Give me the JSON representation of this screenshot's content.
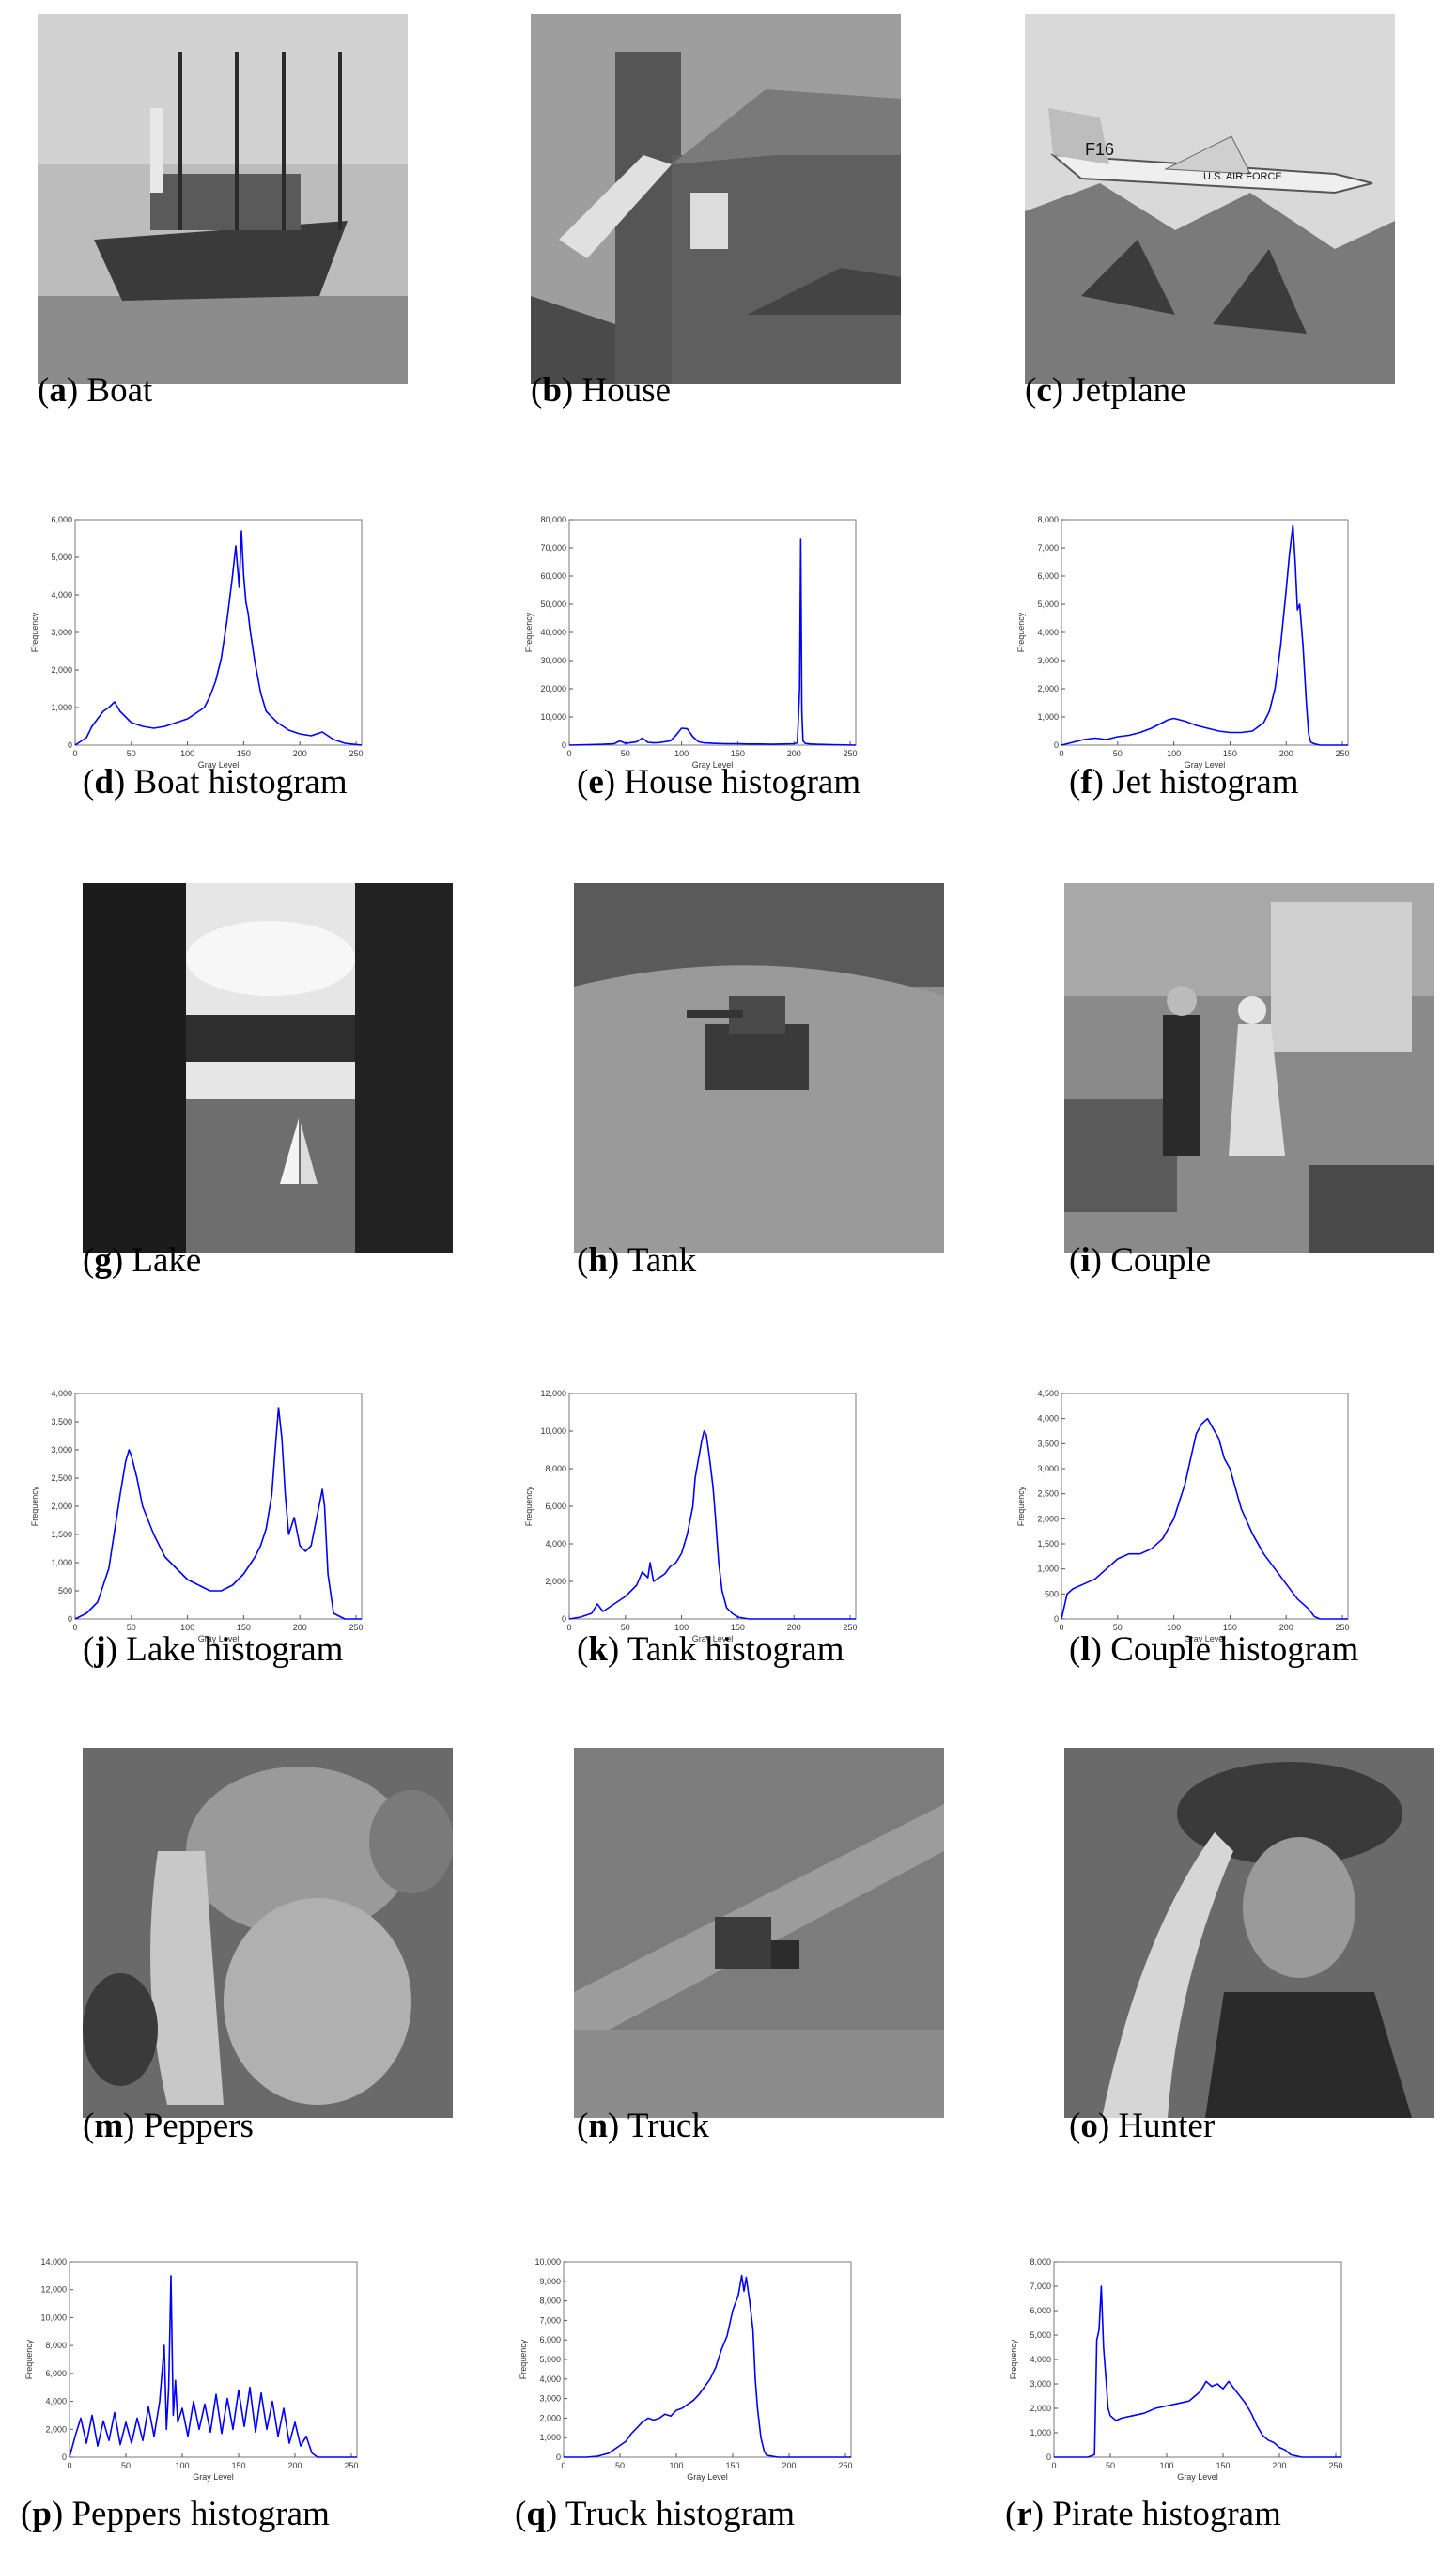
{
  "panels": [
    {
      "letter": "a",
      "caption": "Boat",
      "kind": "image",
      "icon": "boat-photo"
    },
    {
      "letter": "b",
      "caption": "House",
      "kind": "image",
      "icon": "house-photo"
    },
    {
      "letter": "c",
      "caption": "Jetplane",
      "kind": "image",
      "icon": "jetplane-photo",
      "image_text": [
        "F16",
        "U.S. AIR FORCE"
      ]
    },
    {
      "letter": "d",
      "caption": "Boat histogram",
      "kind": "histogram",
      "chart": 0
    },
    {
      "letter": "e",
      "caption": "House histogram",
      "kind": "histogram",
      "chart": 1
    },
    {
      "letter": "f",
      "caption": "Jet histogram",
      "kind": "histogram",
      "chart": 2
    },
    {
      "letter": "g",
      "caption": "Lake",
      "kind": "image",
      "icon": "lake-photo"
    },
    {
      "letter": "h",
      "caption": "Tank",
      "kind": "image",
      "icon": "tank-photo"
    },
    {
      "letter": "i",
      "caption": "Couple",
      "kind": "image",
      "icon": "couple-photo"
    },
    {
      "letter": "j",
      "caption": "Lake histogram",
      "kind": "histogram",
      "chart": 3
    },
    {
      "letter": "k",
      "caption": "Tank histogram",
      "kind": "histogram",
      "chart": 4
    },
    {
      "letter": "l",
      "caption": "Couple histogram",
      "kind": "histogram",
      "chart": 5
    },
    {
      "letter": "m",
      "caption": "Peppers",
      "kind": "image",
      "icon": "peppers-photo"
    },
    {
      "letter": "n",
      "caption": "Truck",
      "kind": "image",
      "icon": "truck-photo"
    },
    {
      "letter": "o",
      "caption": "Hunter",
      "kind": "image",
      "icon": "hunter-photo"
    },
    {
      "letter": "p",
      "caption": "Peppers histogram",
      "kind": "histogram",
      "chart": 6
    },
    {
      "letter": "q",
      "caption": "Truck histogram",
      "kind": "histogram",
      "chart": 7
    },
    {
      "letter": "r",
      "caption": "Pirate histogram",
      "kind": "histogram",
      "chart": 8
    }
  ],
  "chart_style": {
    "line_color": "#0000ff"
  },
  "chart_data": [
    {
      "type": "line",
      "xlabel": "Gray Level",
      "ylabel": "Frequency",
      "xlim": [
        0,
        255
      ],
      "ylim": [
        0,
        6000
      ],
      "xticks": [
        0,
        50,
        100,
        150,
        200,
        250
      ],
      "yticks": [
        0,
        1000,
        2000,
        3000,
        4000,
        5000,
        6000
      ],
      "ytick_labels": [
        "0",
        "1,000",
        "2,000",
        "3,000",
        "4,000",
        "5,000",
        "6,000"
      ],
      "x": [
        0,
        10,
        15,
        20,
        25,
        30,
        35,
        40,
        45,
        50,
        60,
        70,
        80,
        90,
        100,
        110,
        115,
        120,
        125,
        130,
        135,
        140,
        143,
        146,
        148,
        150,
        152,
        154,
        156,
        160,
        165,
        170,
        180,
        190,
        200,
        210,
        220,
        230,
        240,
        255
      ],
      "y": [
        0,
        200,
        500,
        700,
        900,
        1000,
        1150,
        900,
        750,
        600,
        500,
        450,
        500,
        600,
        700,
        900,
        1000,
        1300,
        1700,
        2300,
        3300,
        4500,
        5300,
        4200,
        5700,
        4500,
        3800,
        3500,
        3000,
        2200,
        1400,
        900,
        600,
        400,
        300,
        250,
        350,
        150,
        50,
        0
      ]
    },
    {
      "type": "line",
      "xlabel": "Gray Level",
      "ylabel": "Frequency",
      "xlim": [
        0,
        255
      ],
      "ylim": [
        0,
        80000
      ],
      "xticks": [
        0,
        50,
        100,
        150,
        200,
        250
      ],
      "yticks": [
        0,
        10000,
        20000,
        30000,
        40000,
        50000,
        60000,
        70000,
        80000
      ],
      "ytick_labels": [
        "0",
        "10,000",
        "20,000",
        "30,000",
        "40,000",
        "50,000",
        "60,000",
        "70,000",
        "80,000"
      ],
      "x": [
        0,
        20,
        30,
        40,
        45,
        50,
        55,
        60,
        65,
        70,
        75,
        80,
        90,
        95,
        100,
        105,
        110,
        115,
        120,
        130,
        140,
        150,
        160,
        170,
        180,
        190,
        200,
        203,
        205,
        206,
        207,
        208,
        210,
        215,
        220,
        230,
        240,
        255
      ],
      "y": [
        0,
        200,
        300,
        500,
        1500,
        600,
        900,
        1200,
        2500,
        1000,
        800,
        900,
        1500,
        3500,
        6000,
        5800,
        3000,
        1200,
        800,
        600,
        500,
        500,
        400,
        400,
        300,
        400,
        500,
        800,
        20000,
        73000,
        12000,
        1500,
        600,
        400,
        300,
        200,
        100,
        0
      ]
    },
    {
      "type": "line",
      "xlabel": "Gray Level",
      "ylabel": "Frequency",
      "xlim": [
        0,
        255
      ],
      "ylim": [
        0,
        8000
      ],
      "xticks": [
        0,
        50,
        100,
        150,
        200,
        250
      ],
      "yticks": [
        0,
        1000,
        2000,
        3000,
        4000,
        5000,
        6000,
        7000,
        8000
      ],
      "ytick_labels": [
        "0",
        "1,000",
        "2,000",
        "3,000",
        "4,000",
        "5,000",
        "6,000",
        "7,000",
        "8,000"
      ],
      "x": [
        0,
        10,
        20,
        30,
        40,
        50,
        60,
        70,
        80,
        90,
        95,
        100,
        105,
        110,
        120,
        130,
        140,
        150,
        160,
        170,
        180,
        185,
        190,
        195,
        200,
        203,
        206,
        208,
        210,
        212,
        215,
        218,
        220,
        222,
        225,
        230,
        240,
        255
      ],
      "y": [
        0,
        100,
        200,
        250,
        200,
        300,
        350,
        450,
        600,
        800,
        900,
        950,
        900,
        850,
        700,
        600,
        500,
        450,
        450,
        500,
        800,
        1200,
        2000,
        3500,
        5500,
        6800,
        7800,
        6500,
        4800,
        5000,
        3500,
        1500,
        400,
        100,
        50,
        0,
        0,
        0
      ]
    },
    {
      "type": "line",
      "xlabel": "Gray Level",
      "ylabel": "Frequency",
      "xlim": [
        0,
        255
      ],
      "ylim": [
        0,
        4000
      ],
      "xticks": [
        0,
        50,
        100,
        150,
        200,
        250
      ],
      "yticks": [
        0,
        500,
        1000,
        1500,
        2000,
        2500,
        3000,
        3500,
        4000
      ],
      "ytick_labels": [
        "0",
        "500",
        "1,000",
        "1,500",
        "2,000",
        "2,500",
        "3,000",
        "3,500",
        "4,000"
      ],
      "x": [
        0,
        10,
        20,
        30,
        40,
        45,
        48,
        50,
        55,
        60,
        70,
        80,
        90,
        100,
        110,
        120,
        130,
        140,
        150,
        160,
        165,
        170,
        175,
        178,
        181,
        184,
        187,
        190,
        195,
        200,
        205,
        210,
        215,
        220,
        222,
        225,
        230,
        240,
        255
      ],
      "y": [
        0,
        100,
        300,
        900,
        2200,
        2800,
        3000,
        2900,
        2500,
        2000,
        1500,
        1100,
        900,
        700,
        600,
        500,
        500,
        600,
        800,
        1100,
        1300,
        1600,
        2200,
        3000,
        3750,
        3200,
        2200,
        1500,
        1800,
        1300,
        1200,
        1300,
        1800,
        2300,
        2000,
        800,
        100,
        0,
        0
      ]
    },
    {
      "type": "line",
      "xlabel": "Gray Level",
      "ylabel": "Frequency",
      "xlim": [
        0,
        255
      ],
      "ylim": [
        0,
        12000
      ],
      "xticks": [
        0,
        50,
        100,
        150,
        200,
        250
      ],
      "yticks": [
        0,
        2000,
        4000,
        6000,
        8000,
        10000,
        12000
      ],
      "ytick_labels": [
        "0",
        "2,000",
        "4,000",
        "6,000",
        "8,000",
        "10,000",
        "12,000"
      ],
      "x": [
        0,
        10,
        20,
        25,
        30,
        35,
        40,
        50,
        60,
        65,
        70,
        72,
        75,
        80,
        85,
        90,
        95,
        100,
        105,
        110,
        112,
        115,
        118,
        120,
        122,
        125,
        128,
        130,
        133,
        136,
        140,
        145,
        150,
        160,
        180,
        200,
        255
      ],
      "y": [
        0,
        100,
        300,
        800,
        400,
        600,
        800,
        1200,
        1800,
        2500,
        2200,
        3000,
        2000,
        2200,
        2400,
        2800,
        3000,
        3500,
        4500,
        6000,
        7500,
        8500,
        9500,
        10000,
        9800,
        8500,
        7000,
        5500,
        3000,
        1500,
        600,
        300,
        100,
        0,
        0,
        0,
        0
      ]
    },
    {
      "type": "line",
      "xlabel": "Gray Level",
      "ylabel": "Frequency",
      "xlim": [
        0,
        255
      ],
      "ylim": [
        0,
        4500
      ],
      "xticks": [
        0,
        50,
        100,
        150,
        200,
        250
      ],
      "yticks": [
        0,
        500,
        1000,
        1500,
        2000,
        2500,
        3000,
        3500,
        4000,
        4500
      ],
      "ytick_labels": [
        "0",
        "500",
        "1,000",
        "1,500",
        "2,000",
        "2,500",
        "3,000",
        "3,500",
        "4,000",
        "4,500"
      ],
      "x": [
        0,
        5,
        10,
        20,
        30,
        40,
        50,
        60,
        70,
        80,
        90,
        100,
        110,
        115,
        120,
        125,
        130,
        135,
        140,
        145,
        150,
        155,
        160,
        170,
        180,
        190,
        200,
        210,
        220,
        225,
        230,
        255
      ],
      "y": [
        0,
        500,
        600,
        700,
        800,
        1000,
        1200,
        1300,
        1300,
        1400,
        1600,
        2000,
        2700,
        3200,
        3700,
        3900,
        4000,
        3800,
        3600,
        3200,
        3000,
        2600,
        2200,
        1700,
        1300,
        1000,
        700,
        400,
        200,
        50,
        0,
        0
      ]
    },
    {
      "type": "line",
      "xlabel": "Gray Level",
      "ylabel": "Frequency",
      "xlim": [
        0,
        255
      ],
      "ylim": [
        0,
        14000
      ],
      "xticks": [
        0,
        50,
        100,
        150,
        200,
        250
      ],
      "yticks": [
        0,
        2000,
        4000,
        6000,
        8000,
        10000,
        12000,
        14000
      ],
      "ytick_labels": [
        "0",
        "2,000",
        "4,000",
        "6,000",
        "8,000",
        "10,000",
        "12,000",
        "14,000"
      ],
      "x": [
        0,
        5,
        10,
        15,
        20,
        25,
        30,
        35,
        40,
        45,
        50,
        55,
        60,
        65,
        70,
        75,
        80,
        84,
        86,
        88,
        90,
        92,
        94,
        96,
        100,
        105,
        110,
        115,
        120,
        125,
        130,
        135,
        140,
        145,
        150,
        155,
        160,
        165,
        170,
        175,
        180,
        185,
        190,
        195,
        200,
        205,
        210,
        215,
        220,
        255
      ],
      "y": [
        0,
        1500,
        2800,
        1000,
        3000,
        800,
        2600,
        1200,
        3200,
        900,
        2500,
        1000,
        2800,
        1200,
        3600,
        1500,
        4000,
        8000,
        2000,
        5000,
        13000,
        3000,
        5500,
        2500,
        3500,
        1500,
        4000,
        2000,
        3800,
        1800,
        4500,
        1700,
        4200,
        2000,
        4800,
        2200,
        5000,
        1800,
        4600,
        2000,
        4000,
        1500,
        3500,
        1000,
        2500,
        800,
        1500,
        300,
        0,
        0
      ]
    },
    {
      "type": "line",
      "xlabel": "Gray Level",
      "ylabel": "Frequency",
      "xlim": [
        0,
        255
      ],
      "ylim": [
        0,
        10000
      ],
      "xticks": [
        0,
        50,
        100,
        150,
        200,
        250
      ],
      "yticks": [
        0,
        1000,
        2000,
        3000,
        4000,
        5000,
        6000,
        7000,
        8000,
        9000,
        10000
      ],
      "ytick_labels": [
        "0",
        "1,000",
        "2,000",
        "3,000",
        "4,000",
        "5,000",
        "6,000",
        "7,000",
        "8,000",
        "9,000",
        "10,000"
      ],
      "x": [
        0,
        20,
        30,
        40,
        50,
        55,
        60,
        65,
        70,
        75,
        80,
        85,
        90,
        95,
        100,
        105,
        110,
        115,
        120,
        125,
        130,
        135,
        140,
        145,
        150,
        155,
        158,
        160,
        162,
        165,
        168,
        170,
        172,
        175,
        178,
        180,
        190,
        200,
        255
      ],
      "y": [
        0,
        0,
        50,
        200,
        600,
        800,
        1200,
        1500,
        1800,
        2000,
        1900,
        2000,
        2200,
        2100,
        2400,
        2500,
        2700,
        2900,
        3200,
        3600,
        4000,
        4600,
        5500,
        6200,
        7500,
        8300,
        9300,
        8500,
        9200,
        8000,
        6500,
        4000,
        2500,
        1000,
        300,
        100,
        0,
        0,
        0
      ]
    },
    {
      "type": "line",
      "xlabel": "Gray Level",
      "ylabel": "Frequency",
      "xlim": [
        0,
        255
      ],
      "ylim": [
        0,
        8000
      ],
      "xticks": [
        0,
        50,
        100,
        150,
        200,
        250
      ],
      "yticks": [
        0,
        1000,
        2000,
        3000,
        4000,
        5000,
        6000,
        7000,
        8000
      ],
      "ytick_labels": [
        "0",
        "1,000",
        "2,000",
        "3,000",
        "4,000",
        "5,000",
        "6,000",
        "7,000",
        "8,000"
      ],
      "x": [
        0,
        30,
        36,
        38,
        40,
        42,
        44,
        46,
        48,
        50,
        55,
        60,
        70,
        80,
        90,
        100,
        110,
        120,
        125,
        130,
        135,
        140,
        145,
        150,
        155,
        160,
        165,
        170,
        175,
        180,
        185,
        190,
        195,
        200,
        205,
        210,
        220,
        255
      ],
      "y": [
        0,
        0,
        100,
        4800,
        5200,
        7000,
        4500,
        3300,
        2000,
        1700,
        1500,
        1600,
        1700,
        1800,
        2000,
        2100,
        2200,
        2300,
        2500,
        2700,
        3100,
        2900,
        3000,
        2800,
        3100,
        2800,
        2500,
        2200,
        1800,
        1300,
        900,
        700,
        600,
        400,
        300,
        100,
        0,
        0
      ]
    }
  ]
}
